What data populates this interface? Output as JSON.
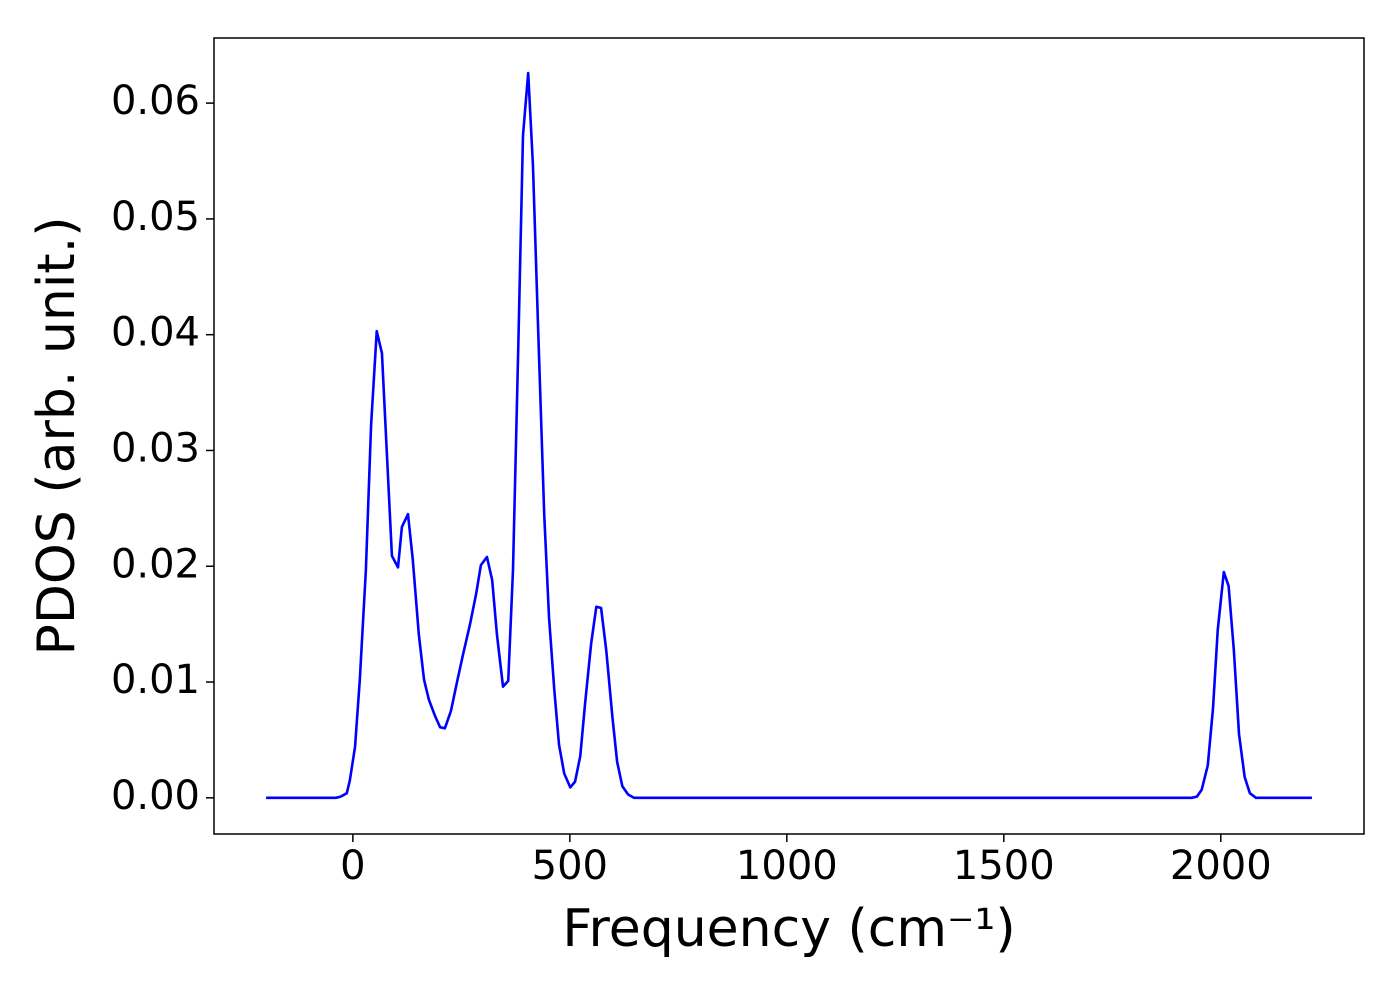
{
  "chart_data": {
    "type": "line",
    "xlabel": "Frequency (cm⁻¹)",
    "ylabel": "PDOS (arb. unit.)",
    "xlim": [
      -320,
      2330
    ],
    "ylim": [
      -0.003125,
      0.065625
    ],
    "xticks": [
      0,
      500,
      1000,
      1500,
      2000
    ],
    "yticks": [
      {
        "value": 0,
        "label": "0.00"
      },
      0.01,
      0.02,
      0.03,
      0.04,
      0.05,
      0.06
    ],
    "grid": false,
    "x": [
      -200,
      -39,
      -28,
      -14,
      -7,
      5,
      16,
      30,
      42,
      55,
      67,
      78,
      90,
      104,
      113,
      127,
      138,
      152,
      164,
      175,
      189,
      201,
      212,
      226,
      240,
      254,
      270,
      284,
      295,
      309,
      321,
      332,
      346,
      358,
      369,
      381,
      392,
      404,
      415,
      427,
      441,
      452,
      464,
      475,
      487,
      501,
      512,
      524,
      535,
      549,
      561,
      572,
      584,
      598,
      609,
      621,
      634,
      648,
      1933,
      1945,
      1956,
      1970,
      1982,
      1993,
      2007,
      2018,
      2030,
      2042,
      2055,
      2067,
      2081,
      2210
    ],
    "series": [
      {
        "name": "PDOS",
        "color": "#0000ff",
        "values": [
          0,
          0,
          0.0001,
          0.0004,
          0.0015,
          0.0044,
          0.0102,
          0.0197,
          0.0322,
          0.0403,
          0.0384,
          0.03,
          0.0209,
          0.0199,
          0.0234,
          0.0245,
          0.0206,
          0.0141,
          0.0102,
          0.0085,
          0.0071,
          0.0061,
          0.006,
          0.0075,
          0.01,
          0.0124,
          0.015,
          0.0176,
          0.0201,
          0.0208,
          0.0188,
          0.0141,
          0.0096,
          0.0101,
          0.0197,
          0.0387,
          0.0572,
          0.0626,
          0.0546,
          0.0404,
          0.0244,
          0.0156,
          0.0094,
          0.0046,
          0.0021,
          0.0009,
          0.0014,
          0.0036,
          0.0081,
          0.0133,
          0.0165,
          0.0164,
          0.0127,
          0.007,
          0.0031,
          0.001,
          0.0003,
          0,
          0,
          0.0001,
          0.0007,
          0.0028,
          0.0077,
          0.0145,
          0.0195,
          0.0183,
          0.0128,
          0.0055,
          0.0018,
          0.0004,
          0,
          0
        ]
      }
    ]
  }
}
